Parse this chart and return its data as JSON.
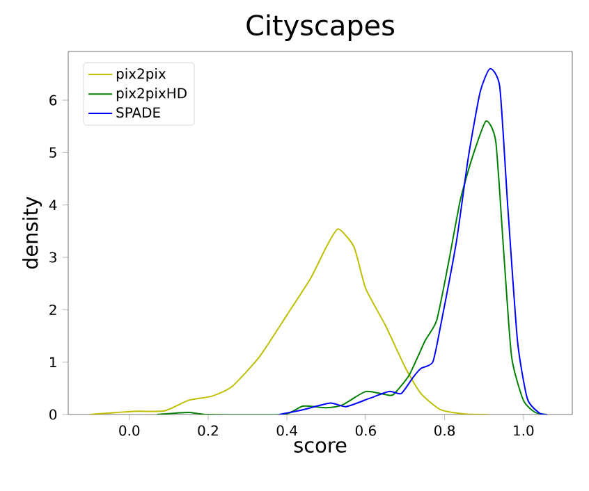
{
  "chart_data": {
    "type": "line",
    "title": "Cityscapes",
    "xlabel": "score",
    "ylabel": "density",
    "xlim": [
      -0.155,
      1.124
    ],
    "ylim": [
      0,
      6.93
    ],
    "xticks": [
      {
        "value": 0,
        "label": "0.0"
      },
      {
        "value": 0.2,
        "label": "0.2"
      },
      {
        "value": 0.4,
        "label": "0.4"
      },
      {
        "value": 0.6,
        "label": "0.6"
      },
      {
        "value": 0.8,
        "label": "0.8"
      },
      {
        "value": 1,
        "label": "1.0"
      }
    ],
    "yticks": [
      0,
      1,
      2,
      3,
      4,
      5,
      6
    ],
    "legend": "top left",
    "grid": false,
    "series": [
      {
        "name": "pix2pix",
        "color": "#bfbf00",
        "x": [
          -0.1,
          0.01,
          0.09,
          0.15,
          0.21,
          0.26,
          0.33,
          0.4,
          0.46,
          0.5,
          0.53,
          0.57,
          0.6,
          0.65,
          0.7,
          0.74,
          0.79,
          0.85,
          0.91
        ],
        "values": [
          0,
          0.06,
          0.07,
          0.27,
          0.35,
          0.53,
          1.1,
          1.9,
          2.6,
          3.2,
          3.54,
          3.2,
          2.4,
          1.7,
          0.9,
          0.4,
          0.09,
          0.01,
          0
        ]
      },
      {
        "name": "pix2pixHD",
        "color": "#008000",
        "x": [
          0.07,
          0.15,
          0.2,
          0.39,
          0.44,
          0.5,
          0.54,
          0.6,
          0.65,
          0.67,
          0.71,
          0.75,
          0.78,
          0.81,
          0.84,
          0.87,
          0.905,
          0.93,
          0.95,
          0.97,
          1.0,
          1.03,
          1.06
        ],
        "values": [
          0,
          0.04,
          0,
          0,
          0.16,
          0.13,
          0.18,
          0.44,
          0.38,
          0.38,
          0.75,
          1.4,
          1.8,
          2.9,
          4.1,
          4.9,
          5.6,
          5.2,
          3.1,
          1.1,
          0.27,
          0.04,
          0
        ]
      },
      {
        "name": "SPADE",
        "color": "#0000ff",
        "x": [
          0.38,
          0.44,
          0.51,
          0.55,
          0.61,
          0.66,
          0.69,
          0.72,
          0.74,
          0.77,
          0.79,
          0.83,
          0.86,
          0.89,
          0.915,
          0.94,
          0.96,
          0.985,
          1.01,
          1.04,
          1.06
        ],
        "values": [
          0,
          0.09,
          0.22,
          0.15,
          0.31,
          0.44,
          0.4,
          0.71,
          0.88,
          1.0,
          1.7,
          3.3,
          4.9,
          6.15,
          6.6,
          6.25,
          4.0,
          1.4,
          0.3,
          0.03,
          0
        ]
      }
    ]
  }
}
